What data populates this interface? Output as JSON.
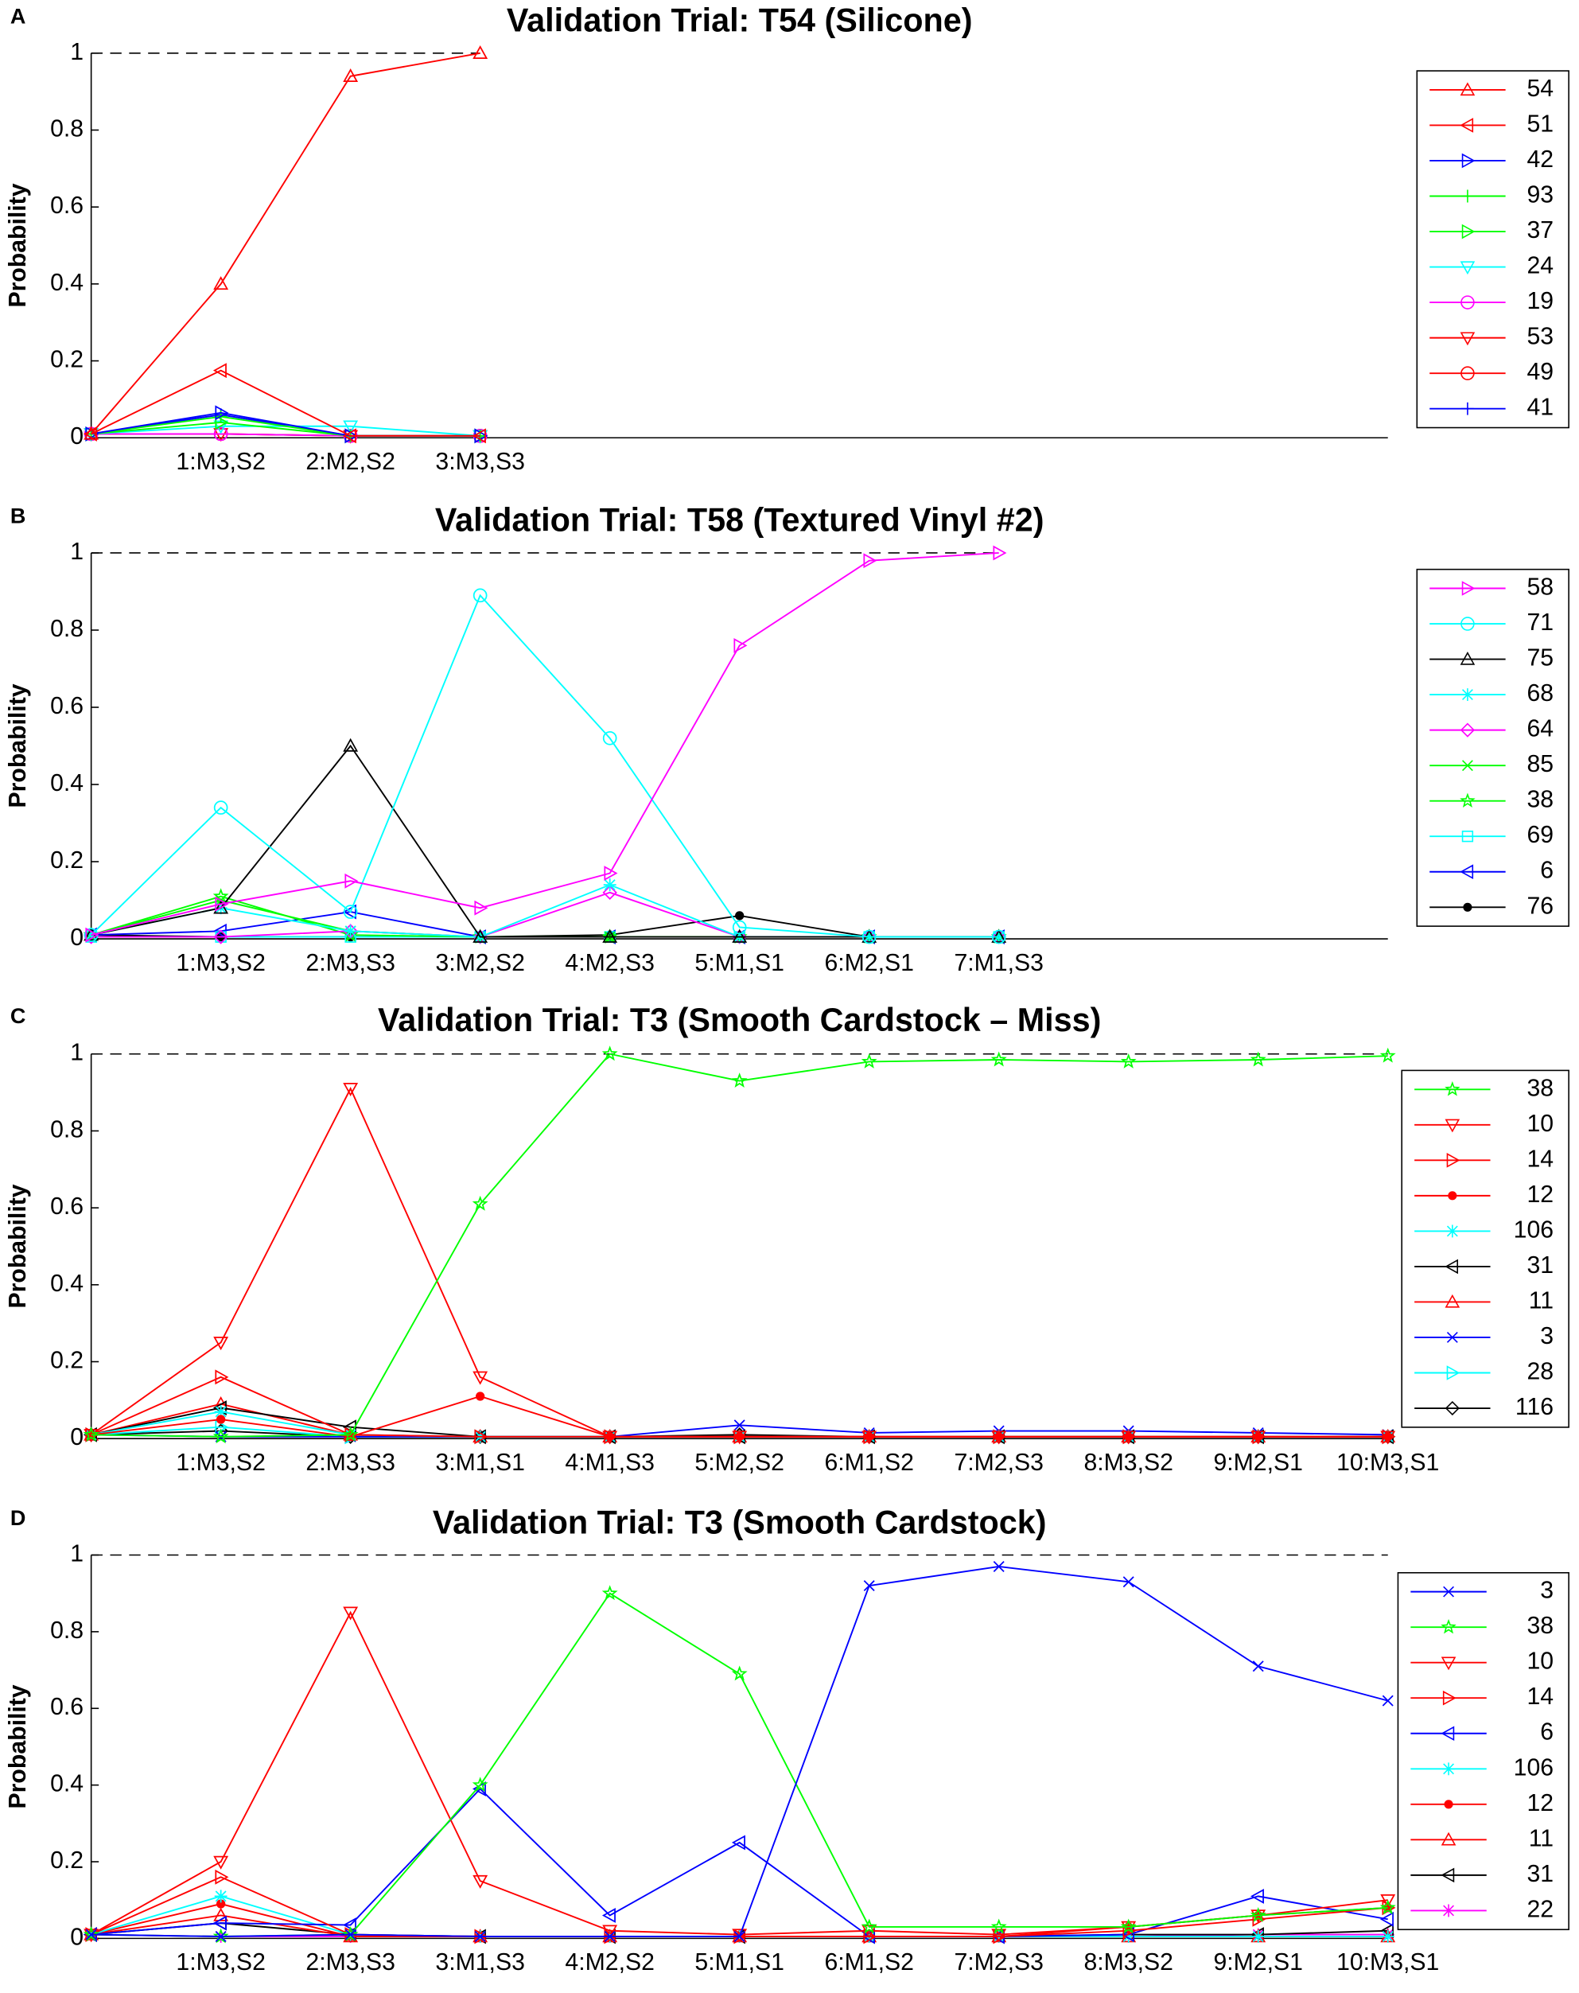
{
  "chart_data": [
    {
      "type": "line",
      "panel": "A",
      "title": "Validation Trial: T54 (Silicone)",
      "ylabel": "Probability",
      "categories": [
        null,
        "1:M3,S2",
        "2:M2,S2",
        "3:M3,S3"
      ],
      "xlim": [
        0,
        10
      ],
      "ylim": [
        0,
        1
      ],
      "yticks": [
        0,
        0.2,
        0.4,
        0.6,
        0.8,
        1
      ],
      "reference_line": 1,
      "legend": "right",
      "series": [
        {
          "name": "54",
          "color": "#ff0000",
          "marker": "triangle-up",
          "values": [
            0.01,
            0.4,
            0.94,
            1.0
          ]
        },
        {
          "name": "51",
          "color": "#ff0000",
          "marker": "triangle-left",
          "values": [
            0.01,
            0.175,
            0.005,
            0.005
          ]
        },
        {
          "name": "42",
          "color": "#0000ff",
          "marker": "triangle-right",
          "values": [
            0.01,
            0.065,
            0.005,
            0.005
          ]
        },
        {
          "name": "93",
          "color": "#00ff00",
          "marker": "plus",
          "values": [
            0.01,
            0.055,
            0.005,
            0.005
          ]
        },
        {
          "name": "37",
          "color": "#00ff00",
          "marker": "triangle-right",
          "values": [
            0.01,
            0.04,
            0.005,
            0.005
          ]
        },
        {
          "name": "24",
          "color": "#00ffff",
          "marker": "triangle-down",
          "values": [
            0.01,
            0.03,
            0.03,
            0.005
          ]
        },
        {
          "name": "19",
          "color": "#ff00ff",
          "marker": "circle",
          "values": [
            0.01,
            0.01,
            0.005,
            0.005
          ]
        },
        {
          "name": "53",
          "color": "#ff0000",
          "marker": "triangle-down",
          "values": [
            0.01,
            0.01,
            0.005,
            0.005
          ]
        },
        {
          "name": "49",
          "color": "#ff0000",
          "marker": "circle",
          "values": [
            0.01,
            0.01,
            0.005,
            0.005
          ]
        },
        {
          "name": "41",
          "color": "#0000ff",
          "marker": "plus",
          "values": [
            0.01,
            0.06,
            0.005,
            0.005
          ]
        }
      ]
    },
    {
      "type": "line",
      "panel": "B",
      "title": "Validation Trial: T58 (Textured Vinyl #2)",
      "ylabel": "Probability",
      "categories": [
        null,
        "1:M3,S2",
        "2:M3,S3",
        "3:M2,S2",
        "4:M2,S3",
        "5:M1,S1",
        "6:M2,S1",
        "7:M1,S3"
      ],
      "xlim": [
        0,
        10
      ],
      "ylim": [
        0,
        1
      ],
      "yticks": [
        0,
        0.2,
        0.4,
        0.6,
        0.8,
        1
      ],
      "reference_line": 1,
      "legend": "right",
      "series": [
        {
          "name": "58",
          "color": "#ff00ff",
          "marker": "triangle-right",
          "values": [
            0.01,
            0.09,
            0.15,
            0.08,
            0.17,
            0.76,
            0.98,
            1.0
          ]
        },
        {
          "name": "71",
          "color": "#00ffff",
          "marker": "circle",
          "values": [
            0.01,
            0.34,
            0.07,
            0.89,
            0.52,
            0.03,
            0.005,
            0.005
          ]
        },
        {
          "name": "75",
          "color": "#000000",
          "marker": "triangle-up",
          "values": [
            0.01,
            0.08,
            0.5,
            0.005,
            0.005,
            0.005,
            0.005,
            0.005
          ]
        },
        {
          "name": "68",
          "color": "#00ffff",
          "marker": "asterisk",
          "values": [
            0.01,
            0.08,
            0.02,
            0.005,
            0.14,
            0.005,
            0.005,
            0.005
          ]
        },
        {
          "name": "64",
          "color": "#ff00ff",
          "marker": "diamond",
          "values": [
            0.005,
            0.005,
            0.02,
            0.005,
            0.12,
            0.005,
            0.005,
            0.005
          ]
        },
        {
          "name": "85",
          "color": "#00ff00",
          "marker": "x",
          "values": [
            0.01,
            0.1,
            0.02,
            0.005,
            0.005,
            0.005,
            0.005,
            0.005
          ]
        },
        {
          "name": "38",
          "color": "#00ff00",
          "marker": "star",
          "values": [
            0.01,
            0.11,
            0.01,
            0.005,
            0.005,
            0.005,
            0.005,
            0.005
          ]
        },
        {
          "name": "69",
          "color": "#00ffff",
          "marker": "square",
          "values": [
            0.005,
            0.005,
            0.005,
            0.005,
            0.005,
            0.005,
            0.005,
            0.005
          ]
        },
        {
          "name": "6",
          "color": "#0000ff",
          "marker": "triangle-left",
          "values": [
            0.01,
            0.02,
            0.07,
            0.005,
            0.005,
            0.005,
            0.005,
            0.005
          ]
        },
        {
          "name": "76",
          "color": "#000000",
          "marker": "dot",
          "values": [
            0.01,
            0.005,
            0.005,
            0.005,
            0.01,
            0.06,
            0.005,
            0.005
          ]
        }
      ]
    },
    {
      "type": "line",
      "panel": "C",
      "title": "Validation Trial: T3 (Smooth Cardstock – Miss)",
      "ylabel": "Probability",
      "categories": [
        null,
        "1:M3,S2",
        "2:M3,S3",
        "3:M1,S1",
        "4:M1,S3",
        "5:M2,S2",
        "6:M1,S2",
        "7:M2,S3",
        "8:M3,S2",
        "9:M2,S1",
        "10:M3,S1"
      ],
      "xlim": [
        0,
        10
      ],
      "ylim": [
        0,
        1
      ],
      "yticks": [
        0,
        0.2,
        0.4,
        0.6,
        0.8,
        1
      ],
      "reference_line": 1,
      "legend": "right",
      "series": [
        {
          "name": "38",
          "color": "#00ff00",
          "marker": "star",
          "values": [
            0.01,
            0.005,
            0.01,
            0.61,
            1.0,
            0.93,
            0.98,
            0.985,
            0.98,
            0.985,
            0.995
          ]
        },
        {
          "name": "10",
          "color": "#ff0000",
          "marker": "triangle-down",
          "values": [
            0.01,
            0.25,
            0.91,
            0.16,
            0.005,
            0.005,
            0.005,
            0.005,
            0.005,
            0.005,
            0.005
          ]
        },
        {
          "name": "14",
          "color": "#ff0000",
          "marker": "triangle-right",
          "values": [
            0.01,
            0.16,
            0.01,
            0.005,
            0.005,
            0.005,
            0.005,
            0.005,
            0.005,
            0.005,
            0.005
          ]
        },
        {
          "name": "12",
          "color": "#ff0000",
          "marker": "dot",
          "values": [
            0.01,
            0.05,
            0.005,
            0.11,
            0.005,
            0.005,
            0.005,
            0.005,
            0.005,
            0.005,
            0.005
          ]
        },
        {
          "name": "106",
          "color": "#00ffff",
          "marker": "asterisk",
          "values": [
            0.01,
            0.07,
            0.01,
            0.005,
            0.005,
            0.005,
            0.005,
            0.005,
            0.005,
            0.005,
            0.005
          ]
        },
        {
          "name": "31",
          "color": "#000000",
          "marker": "triangle-left",
          "values": [
            0.01,
            0.08,
            0.03,
            0.005,
            0.005,
            0.005,
            0.005,
            0.005,
            0.005,
            0.005,
            0.005
          ]
        },
        {
          "name": "11",
          "color": "#ff0000",
          "marker": "triangle-up",
          "values": [
            0.01,
            0.09,
            0.01,
            0.005,
            0.005,
            0.005,
            0.005,
            0.005,
            0.005,
            0.005,
            0.005
          ]
        },
        {
          "name": "3",
          "color": "#0000ff",
          "marker": "x",
          "values": [
            0.01,
            0.005,
            0.005,
            0.005,
            0.005,
            0.035,
            0.015,
            0.02,
            0.02,
            0.015,
            0.01
          ]
        },
        {
          "name": "28",
          "color": "#00ffff",
          "marker": "triangle-right",
          "values": [
            0.01,
            0.03,
            0.005,
            0.005,
            0.005,
            0.005,
            0.005,
            0.005,
            0.005,
            0.005,
            0.005
          ]
        },
        {
          "name": "116",
          "color": "#000000",
          "marker": "diamond",
          "values": [
            0.01,
            0.02,
            0.005,
            0.005,
            0.005,
            0.01,
            0.005,
            0.005,
            0.005,
            0.005,
            0.005
          ]
        }
      ]
    },
    {
      "type": "line",
      "panel": "D",
      "title": "Validation Trial: T3 (Smooth Cardstock)",
      "ylabel": "Probability",
      "categories": [
        null,
        "1:M3,S2",
        "2:M3,S3",
        "3:M1,S3",
        "4:M2,S2",
        "5:M1,S1",
        "6:M1,S2",
        "7:M2,S3",
        "8:M3,S2",
        "9:M2,S1",
        "10:M3,S1"
      ],
      "xlim": [
        0,
        10
      ],
      "ylim": [
        0,
        1
      ],
      "yticks": [
        0,
        0.2,
        0.4,
        0.6,
        0.8,
        1
      ],
      "reference_line": 1,
      "legend": "right",
      "series": [
        {
          "name": "3",
          "color": "#0000ff",
          "marker": "x",
          "values": [
            0.01,
            0.005,
            0.01,
            0.005,
            0.005,
            0.005,
            0.92,
            0.97,
            0.93,
            0.71,
            0.62
          ]
        },
        {
          "name": "38",
          "color": "#00ff00",
          "marker": "star",
          "values": [
            0.01,
            0.005,
            0.01,
            0.4,
            0.9,
            0.69,
            0.03,
            0.03,
            0.03,
            0.06,
            0.08
          ]
        },
        {
          "name": "10",
          "color": "#ff0000",
          "marker": "triangle-down",
          "values": [
            0.01,
            0.2,
            0.85,
            0.15,
            0.02,
            0.01,
            0.02,
            0.01,
            0.03,
            0.06,
            0.1
          ]
        },
        {
          "name": "14",
          "color": "#ff0000",
          "marker": "triangle-right",
          "values": [
            0.01,
            0.16,
            0.01,
            0.005,
            0.005,
            0.005,
            0.005,
            0.005,
            0.02,
            0.05,
            0.08
          ]
        },
        {
          "name": "6",
          "color": "#0000ff",
          "marker": "triangle-left",
          "values": [
            0.01,
            0.04,
            0.035,
            0.39,
            0.06,
            0.25,
            0.005,
            0.005,
            0.01,
            0.11,
            0.05
          ]
        },
        {
          "name": "106",
          "color": "#00ffff",
          "marker": "asterisk",
          "values": [
            0.01,
            0.11,
            0.01,
            0.005,
            0.005,
            0.005,
            0.005,
            0.005,
            0.005,
            0.005,
            0.005
          ]
        },
        {
          "name": "12",
          "color": "#ff0000",
          "marker": "dot",
          "values": [
            0.01,
            0.09,
            0.005,
            0.005,
            0.005,
            0.005,
            0.005,
            0.005,
            0.03,
            0.06,
            0.08
          ]
        },
        {
          "name": "11",
          "color": "#ff0000",
          "marker": "triangle-up",
          "values": [
            0.01,
            0.06,
            0.005,
            0.005,
            0.005,
            0.005,
            0.005,
            0.005,
            0.005,
            0.005,
            0.005
          ]
        },
        {
          "name": "31",
          "color": "#000000",
          "marker": "triangle-left",
          "values": [
            0.01,
            0.04,
            0.01,
            0.005,
            0.005,
            0.005,
            0.005,
            0.005,
            0.01,
            0.01,
            0.02
          ]
        },
        {
          "name": "22",
          "color": "#ff00ff",
          "marker": "asterisk",
          "values": [
            0.01,
            0.005,
            0.005,
            0.005,
            0.005,
            0.005,
            0.005,
            0.005,
            0.005,
            0.01,
            0.01
          ]
        }
      ]
    }
  ]
}
